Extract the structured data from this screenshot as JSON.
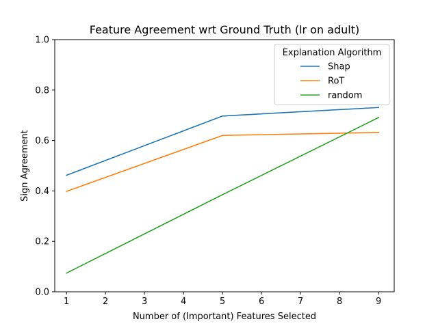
{
  "chart_data": {
    "type": "line",
    "title": "Feature Agreement wrt Ground Truth (lr on adult)",
    "xlabel": "Number of (Important) Features Selected",
    "ylabel": "Sign Agreement",
    "xlim": [
      0.7,
      9.4
    ],
    "ylim": [
      0.0,
      1.0
    ],
    "xticks": [
      "1",
      "2",
      "3",
      "4",
      "5",
      "6",
      "7",
      "8",
      "9"
    ],
    "yticks": [
      "0.0",
      "0.2",
      "0.4",
      "0.6",
      "0.8",
      "1.0"
    ],
    "grid": false,
    "legend": {
      "title": "Explanation Algorithm",
      "placement": "top-right"
    },
    "x": [
      1,
      5,
      9
    ],
    "series": [
      {
        "name": "Shap",
        "color": "#1f77b4",
        "values": [
          0.462,
          0.697,
          0.731
        ]
      },
      {
        "name": "RoT",
        "color": "#ff7f0e",
        "values": [
          0.398,
          0.62,
          0.632
        ]
      },
      {
        "name": "random",
        "color": "#2ca02c",
        "values": [
          0.074,
          0.385,
          0.691
        ]
      }
    ]
  }
}
